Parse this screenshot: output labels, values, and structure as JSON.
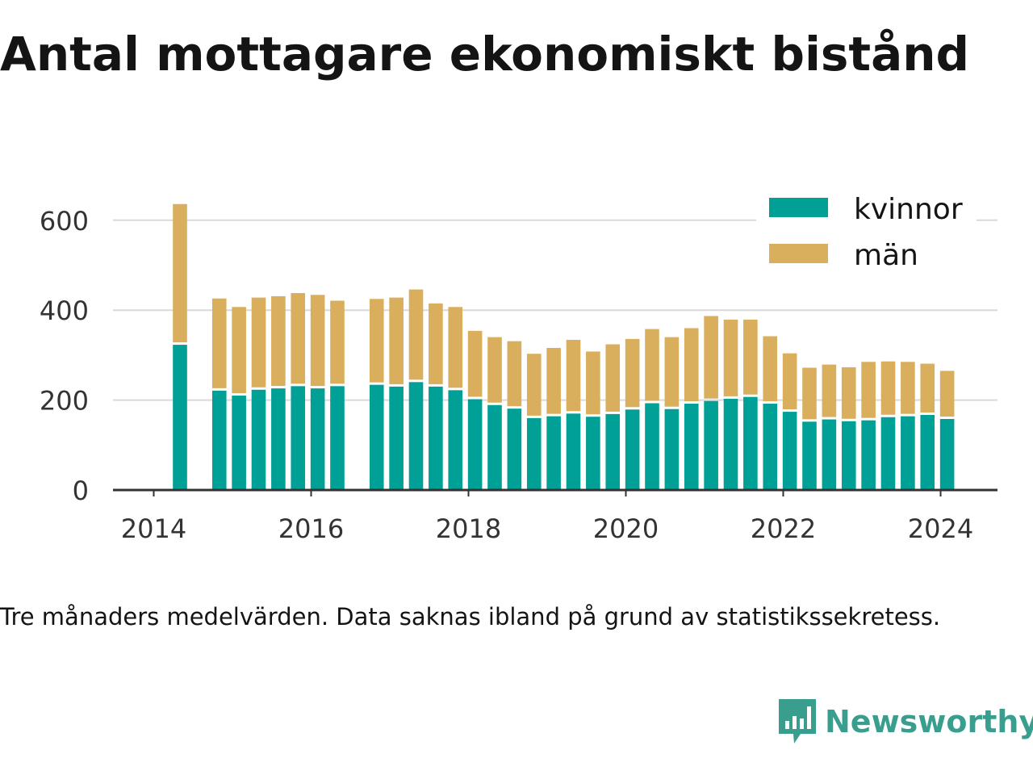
{
  "title": "Antal mottagare ekonomiskt bistånd",
  "subtitle": "Tre månaders medelvärden. Data saknas ibland på grund av statistikssekretess.",
  "brand": {
    "name": "Newsworthy",
    "color": "#3a9e8f",
    "icon": "bar-chart-speech-bubble-icon"
  },
  "colors": {
    "kvinnor": "#00a096",
    "man": "#d9ae5c",
    "grid": "#d9d9d9",
    "axis": "#333333"
  },
  "chart_data": {
    "type": "bar",
    "stacked": true,
    "title": "Antal mottagare ekonomiskt bistånd",
    "xlabel": "",
    "ylabel": "",
    "ylim": [
      0,
      660
    ],
    "yticks": [
      0,
      200,
      400,
      600
    ],
    "xticks": [
      "2014",
      "2016",
      "2018",
      "2020",
      "2022",
      "2024"
    ],
    "grid": true,
    "legend": "top-right",
    "x": [
      "2014-05",
      "2014-08",
      "2014-11",
      "2015-02",
      "2015-05",
      "2015-08",
      "2015-11",
      "2016-02",
      "2016-05",
      "2016-08",
      "2016-11",
      "2017-02",
      "2017-05",
      "2017-08",
      "2017-11",
      "2018-02",
      "2018-05",
      "2018-08",
      "2018-11",
      "2019-02",
      "2019-05",
      "2019-08",
      "2019-11",
      "2020-02",
      "2020-05",
      "2020-08",
      "2020-11",
      "2021-02",
      "2021-05",
      "2021-08",
      "2021-11",
      "2022-02",
      "2022-05",
      "2022-08",
      "2022-11",
      "2023-02",
      "2023-05",
      "2023-08",
      "2023-11",
      "2024-02"
    ],
    "series": [
      {
        "name": "kvinnor",
        "values": [
          323,
          null,
          221,
          210,
          223,
          226,
          231,
          226,
          231,
          null,
          234,
          230,
          240,
          230,
          222,
          202,
          189,
          181,
          160,
          164,
          170,
          163,
          169,
          179,
          193,
          180,
          192,
          198,
          203,
          207,
          192,
          174,
          152,
          157,
          153,
          155,
          162,
          164,
          167,
          158
        ]
      },
      {
        "name": "män",
        "values": [
          313,
          null,
          205,
          197,
          205,
          205,
          207,
          208,
          190,
          null,
          191,
          198,
          206,
          185,
          185,
          152,
          151,
          150,
          143,
          152,
          164,
          145,
          155,
          157,
          165,
          160,
          168,
          189,
          176,
          172,
          150,
          130,
          120,
          122,
          120,
          130,
          124,
          121,
          114,
          107
        ]
      }
    ]
  }
}
